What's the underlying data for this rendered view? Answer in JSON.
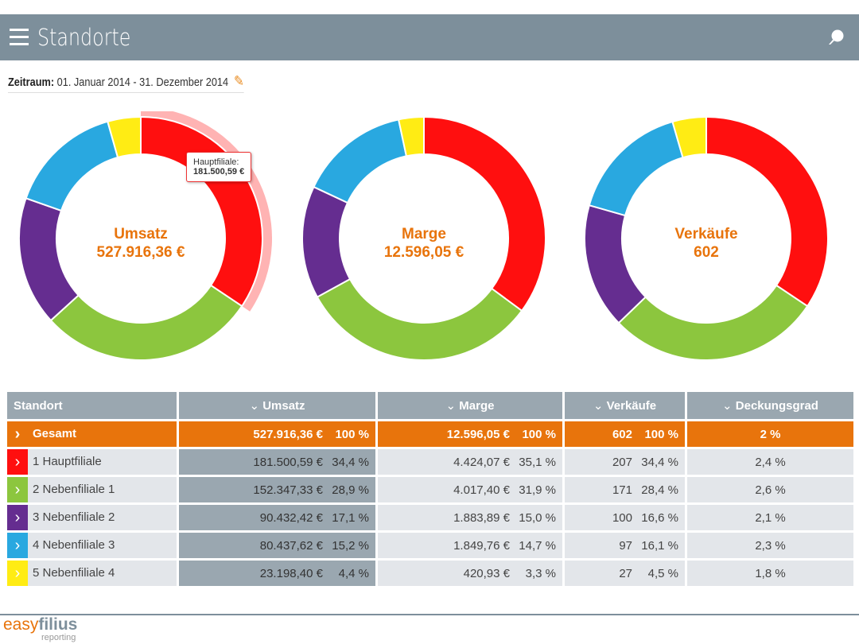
{
  "header": {
    "title": "Standorte",
    "menu_icon": "hamburger-icon",
    "search_icon": "search-icon"
  },
  "period": {
    "label": "Zeitraum:",
    "value": "01. Januar 2014 - 31. Dezember 2014"
  },
  "colors": [
    "#ff0f0f",
    "#8cc63e",
    "#652d90",
    "#29a8e0",
    "#ffec14"
  ],
  "charts": [
    {
      "title": "Umsatz",
      "total": "527.916,36 €",
      "values": [
        181500.59,
        152347.33,
        90432.42,
        80437.62,
        23198.4
      ]
    },
    {
      "title": "Marge",
      "total": "12.596,05 €",
      "values": [
        4424.07,
        4017.4,
        1883.89,
        1849.76,
        420.93
      ]
    },
    {
      "title": "Verkäufe",
      "total": "602",
      "values": [
        207,
        171,
        100,
        97,
        27
      ]
    }
  ],
  "chart_data": [
    {
      "type": "pie",
      "title": "Umsatz",
      "categories": [
        "Hauptfiliale",
        "Nebenfiliale 1",
        "Nebenfiliale 2",
        "Nebenfiliale 3",
        "Nebenfiliale 4"
      ],
      "values": [
        181500.59,
        152347.33,
        90432.42,
        80437.62,
        23198.4
      ]
    },
    {
      "type": "pie",
      "title": "Marge",
      "categories": [
        "Hauptfiliale",
        "Nebenfiliale 1",
        "Nebenfiliale 2",
        "Nebenfiliale 3",
        "Nebenfiliale 4"
      ],
      "values": [
        4424.07,
        4017.4,
        1883.89,
        1849.76,
        420.93
      ]
    },
    {
      "type": "pie",
      "title": "Verkäufe",
      "categories": [
        "Hauptfiliale",
        "Nebenfiliale 1",
        "Nebenfiliale 2",
        "Nebenfiliale 3",
        "Nebenfiliale 4"
      ],
      "values": [
        207,
        171,
        100,
        97,
        27
      ]
    }
  ],
  "tooltip": {
    "label": "Hauptfiliale:",
    "value": "181.500,59 €"
  },
  "table": {
    "headers": [
      "Standort",
      "Umsatz",
      "Marge",
      "Verkäufe",
      "Deckungsgrad"
    ],
    "total": {
      "name": "Gesamt",
      "umsatz": "527.916,36 €",
      "umsatz_pct": "100 %",
      "marge": "12.596,05 €",
      "marge_pct": "100 %",
      "verkaeufe": "602",
      "verkaeufe_pct": "100 %",
      "deckung": "2 %"
    },
    "rows": [
      {
        "name": "1  Hauptfiliale",
        "umsatz": "181.500,59 €",
        "umsatz_pct": "34,4 %",
        "marge": "4.424,07 €",
        "marge_pct": "35,1 %",
        "verkaeufe": "207",
        "verkaeufe_pct": "34,4 %",
        "deckung": "2,4 %"
      },
      {
        "name": "2  Nebenfiliale 1",
        "umsatz": "152.347,33 €",
        "umsatz_pct": "28,9 %",
        "marge": "4.017,40 €",
        "marge_pct": "31,9 %",
        "verkaeufe": "171",
        "verkaeufe_pct": "28,4 %",
        "deckung": "2,6 %"
      },
      {
        "name": "3  Nebenfiliale 2",
        "umsatz": "90.432,42 €",
        "umsatz_pct": "17,1 %",
        "marge": "1.883,89 €",
        "marge_pct": "15,0 %",
        "verkaeufe": "100",
        "verkaeufe_pct": "16,6 %",
        "deckung": "2,1 %"
      },
      {
        "name": "4  Nebenfiliale 3",
        "umsatz": "80.437,62 €",
        "umsatz_pct": "15,2 %",
        "marge": "1.849,76 €",
        "marge_pct": "14,7 %",
        "verkaeufe": "97",
        "verkaeufe_pct": "16,1 %",
        "deckung": "2,3 %"
      },
      {
        "name": "5  Nebenfiliale 4",
        "umsatz": "23.198,40 €",
        "umsatz_pct": "4,4 %",
        "marge": "420,93 €",
        "marge_pct": "3,3 %",
        "verkaeufe": "27",
        "verkaeufe_pct": "4,5 %",
        "deckung": "1,8 %"
      }
    ]
  },
  "footer": {
    "logo_easy": "easy",
    "logo_filius": "filius",
    "logo_sub": "reporting"
  }
}
